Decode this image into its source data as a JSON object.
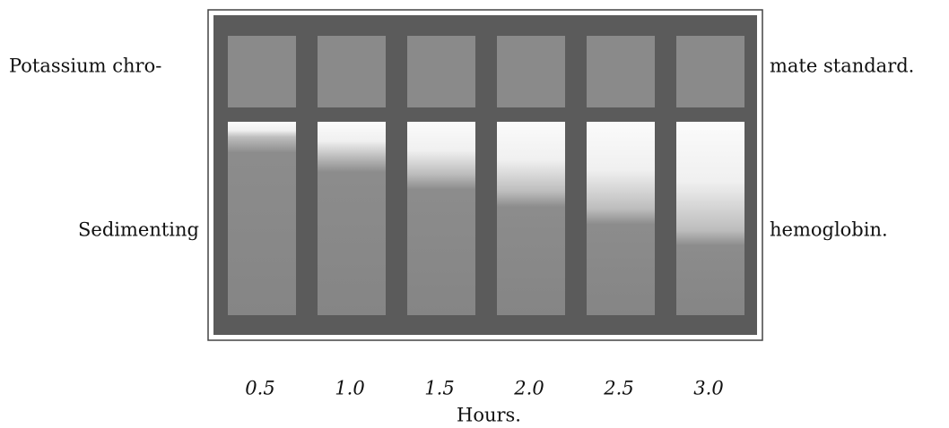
{
  "labels": {
    "top_left": "Potassium chro-",
    "top_right": "mate standard.",
    "bottom_left": "Sedimenting",
    "bottom_right": "hemoglobin."
  },
  "hours": [
    "0.5",
    "1.0",
    "1.5",
    "2.0",
    "2.5",
    "3.0"
  ],
  "axis_label": "Hours."
}
